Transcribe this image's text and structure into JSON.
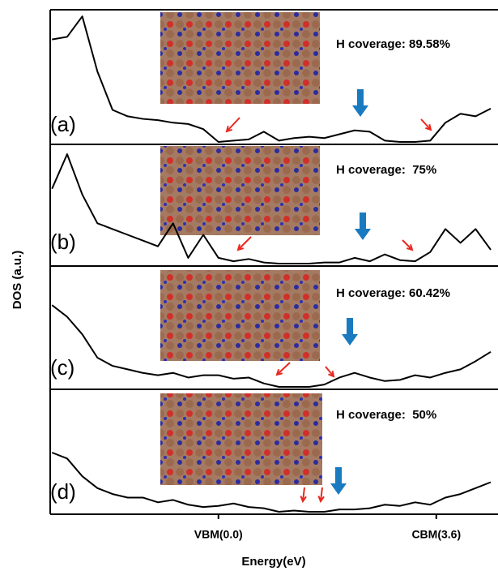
{
  "chart_data": [
    {
      "type": "line",
      "label": "(a)",
      "annotation": "H coverage: 89.58%",
      "ylabel": "DOS (a.u.)",
      "color": "#000000",
      "xlim": [
        -2.78,
        4.62
      ],
      "ylim": [
        0,
        1
      ],
      "x": [
        -2.75,
        -2.5,
        -2.25,
        -2.0,
        -1.75,
        -1.5,
        -1.25,
        -1.0,
        -0.75,
        -0.5,
        -0.25,
        0,
        0.25,
        0.5,
        0.75,
        1.0,
        1.25,
        1.5,
        1.75,
        2.0,
        2.25,
        2.5,
        2.75,
        3.0,
        3.25,
        3.5,
        3.75,
        4.0,
        4.25,
        4.5
      ],
      "values": [
        0.8,
        0.82,
        0.98,
        0.55,
        0.25,
        0.2,
        0.18,
        0.17,
        0.15,
        0.14,
        0.1,
        0.0,
        0.01,
        0.02,
        0.08,
        0.01,
        0.03,
        0.04,
        0.03,
        0.06,
        0.09,
        0.08,
        0.01,
        0.0,
        0.0,
        0.01,
        0.15,
        0.22,
        0.2,
        0.26
      ]
    },
    {
      "type": "line",
      "label": "(b)",
      "annotation": "H coverage:  75%",
      "color": "#000000",
      "xlim": [
        -2.78,
        4.62
      ],
      "ylim": [
        0,
        1
      ],
      "x": [
        -2.75,
        -2.5,
        -2.25,
        -2.0,
        -1.75,
        -1.5,
        -1.25,
        -1.0,
        -0.75,
        -0.5,
        -0.25,
        0,
        0.25,
        0.5,
        0.75,
        1.0,
        1.25,
        1.5,
        1.75,
        2.0,
        2.25,
        2.5,
        2.75,
        3.0,
        3.25,
        3.5,
        3.75,
        4.0,
        4.25,
        4.5
      ],
      "values": [
        0.65,
        0.95,
        0.6,
        0.35,
        0.3,
        0.25,
        0.2,
        0.15,
        0.35,
        0.05,
        0.25,
        0.05,
        0.02,
        0.04,
        0.01,
        0.0,
        0.0,
        0.0,
        0.01,
        0.01,
        0.05,
        0.02,
        0.08,
        0.03,
        0.02,
        0.1,
        0.3,
        0.18,
        0.3,
        0.12
      ]
    },
    {
      "type": "line",
      "label": "(c)",
      "annotation": "H coverage: 60.42%",
      "color": "#000000",
      "xlim": [
        -2.78,
        4.62
      ],
      "ylim": [
        0,
        1
      ],
      "x": [
        -2.75,
        -2.5,
        -2.25,
        -2.0,
        -1.75,
        -1.5,
        -1.25,
        -1.0,
        -0.75,
        -0.5,
        -0.25,
        0,
        0.25,
        0.5,
        0.75,
        1.0,
        1.25,
        1.5,
        1.75,
        2.0,
        2.25,
        2.5,
        2.75,
        3.0,
        3.25,
        3.5,
        3.75,
        4.0,
        4.25,
        4.5
      ],
      "values": [
        0.7,
        0.6,
        0.45,
        0.25,
        0.18,
        0.15,
        0.12,
        0.1,
        0.12,
        0.08,
        0.1,
        0.1,
        0.07,
        0.08,
        0.03,
        0.0,
        0.0,
        0.0,
        0.02,
        0.08,
        0.12,
        0.08,
        0.05,
        0.06,
        0.1,
        0.08,
        0.12,
        0.15,
        0.22,
        0.3
      ]
    },
    {
      "type": "line",
      "label": "(d)",
      "annotation": "H coverage:  50%",
      "color": "#000000",
      "xlim": [
        -2.78,
        4.62
      ],
      "ylim": [
        0,
        1
      ],
      "xticks": [
        {
          "value": 0,
          "label": "VBM(0.0)"
        },
        {
          "value": 3.6,
          "label": "CBM(3.6)"
        }
      ],
      "xlabel": "Energy(eV)",
      "x": [
        -2.75,
        -2.5,
        -2.25,
        -2.0,
        -1.75,
        -1.5,
        -1.25,
        -1.0,
        -0.75,
        -0.5,
        -0.25,
        0,
        0.25,
        0.5,
        0.75,
        1.0,
        1.25,
        1.5,
        1.75,
        2.0,
        2.25,
        2.5,
        2.75,
        3.0,
        3.25,
        3.5,
        3.75,
        4.0,
        4.25,
        4.5
      ],
      "values": [
        0.5,
        0.45,
        0.3,
        0.2,
        0.15,
        0.12,
        0.12,
        0.08,
        0.1,
        0.06,
        0.04,
        0.05,
        0.07,
        0.04,
        0.03,
        0.0,
        0.01,
        0.0,
        0.0,
        0.02,
        0.02,
        0.03,
        0.06,
        0.05,
        0.08,
        0.06,
        0.12,
        0.15,
        0.2,
        0.25
      ]
    }
  ]
}
